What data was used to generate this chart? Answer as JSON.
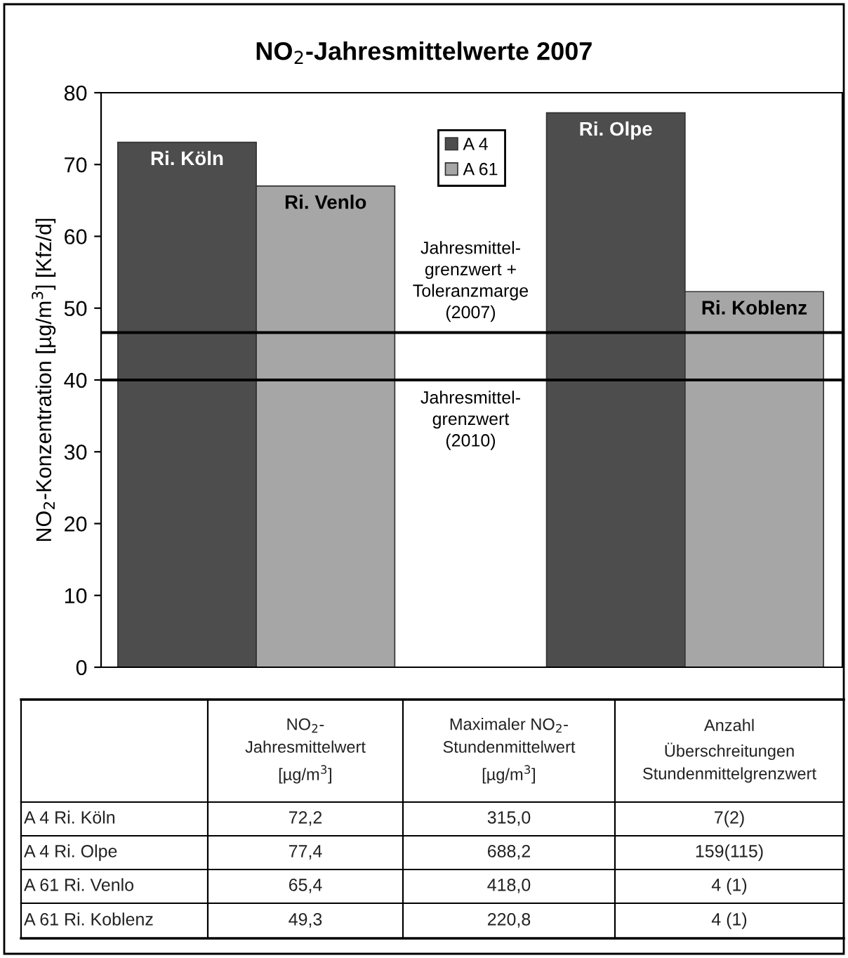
{
  "chart_data": {
    "type": "bar",
    "title": "NO$_{2}$-Jahresmittelwerte 2007",
    "ylabel": "NO$_{2}$-Konzentration [µg/m$^{3}$] [Kfz/d]",
    "categories": [
      null,
      null
    ],
    "series": [
      {
        "name": "A 4",
        "color": "#4d4d4d",
        "values": [
          73.1,
          77.2
        ],
        "value_labels": [
          "Ri. Köln",
          "Ri. Olpe"
        ]
      },
      {
        "name": "A 61",
        "color": "#a6a6a6",
        "values": [
          67.0,
          52.3
        ],
        "value_labels": [
          "Ri. Venlo",
          "Ri. Koblenz"
        ]
      }
    ],
    "ylim": [
      0,
      80
    ],
    "yticks": [
      0,
      10,
      20,
      30,
      40,
      50,
      60,
      70,
      80
    ],
    "grid": false,
    "legend": "top",
    "ref_lines": [
      {
        "axis": "y",
        "value": 46.6,
        "label": "Jahresmittel-\ngrenzwert +\nToleranzmarge\n(2007)",
        "color": "#000000"
      },
      {
        "axis": "y",
        "value": 40,
        "label": "Jahresmittel-\ngrenzwert\n(2010)",
        "color": "#000000"
      }
    ],
    "annotations": [
      "NO$_{2}$-\nJahresmittelwert\n[µg/m$^{3}$]",
      "Maximaler NO$_{2}$-\nStundenmittelwert\n[µg/m$^{3}$]",
      "Anzahl\nÜberschreitungen\nStundenmittelgrenzwert",
      "A 4 Ri. Köln",
      "72,2",
      "315,0",
      "7(2)",
      "A 4 Ri. Olpe",
      "77,4",
      "688,2",
      "159(115)",
      "A 61 Ri. Venlo",
      "65,4",
      "418,0",
      "4 (1)",
      "A 61 Ri. Koblenz",
      "49,3",
      "220,8",
      "4 (1)"
    ]
  }
}
